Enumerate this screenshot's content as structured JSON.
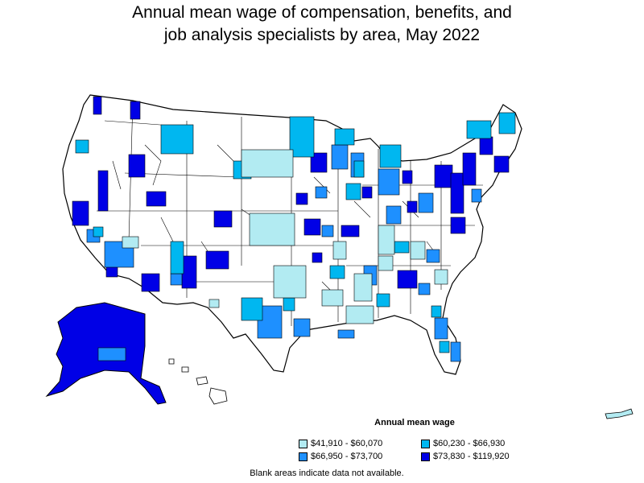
{
  "title_line1": "Annual mean wage of compensation, benefits, and",
  "title_line2": "job analysis specialists by area, May 2022",
  "legend": {
    "title": "Annual mean wage",
    "items": [
      {
        "label": "$41,910 - $60,070",
        "color": "#b2ebf2"
      },
      {
        "label": "$60,230 - $66,930",
        "color": "#00b7f0"
      },
      {
        "label": "$66,950 - $73,700",
        "color": "#1e90ff"
      },
      {
        "label": "$73,830 - $119,920",
        "color": "#0000e6"
      }
    ]
  },
  "note": "Blank areas indicate data not available."
}
